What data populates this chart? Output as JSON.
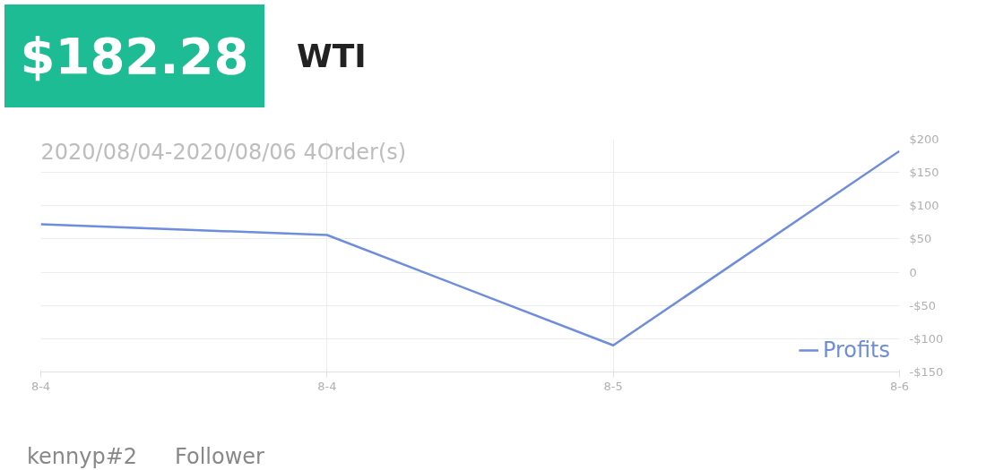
{
  "chart_data": {
    "type": "line",
    "title": "WTI",
    "subtitle": "2020/08/04-2020/08/06 4Order(s)",
    "annotations": [
      "$182.28",
      "kennyp#2",
      "Follower"
    ],
    "categories": [
      "8-4",
      "8-4",
      "8-5",
      "8-6"
    ],
    "series": [
      {
        "name": "Profits",
        "color": "#6f8ddd",
        "values": [
          72,
          56,
          -110,
          182.28
        ]
      }
    ],
    "ylim": [
      -150,
      200
    ],
    "yticks": [
      {
        "value": 200,
        "label": "$200"
      },
      {
        "value": 150,
        "label": "$150"
      },
      {
        "value": 100,
        "label": "$100"
      },
      {
        "value": 50,
        "label": "$50"
      },
      0,
      {
        "value": -50,
        "label": "-$50"
      },
      {
        "value": -100,
        "label": "-$100"
      },
      {
        "value": -150,
        "label": "-$150"
      }
    ],
    "grid": true,
    "legend": "bottom right",
    "marker": "none",
    "line_style": "solid"
  }
}
